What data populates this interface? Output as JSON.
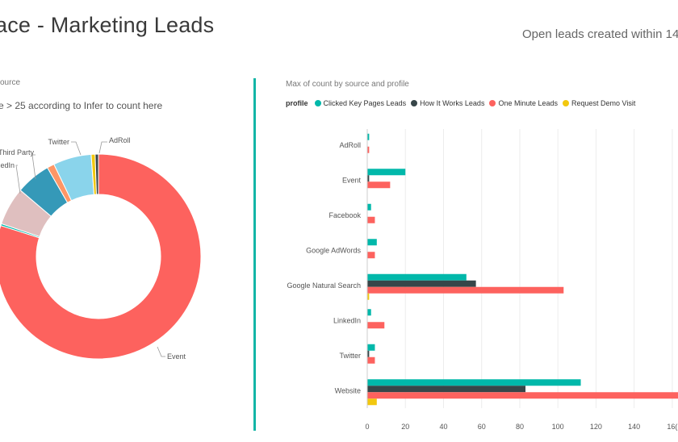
{
  "header": {
    "title": "ace - Marketing Leads",
    "subtitle": "Open leads created within 14 -"
  },
  "donut": {
    "title": "ource",
    "subtitle": "e > 25 according to Infer to count here"
  },
  "bar": {
    "title": "Max of count by source and profile",
    "legend_title": "profile"
  },
  "chart_data": [
    {
      "type": "pie",
      "categories": [
        "Event",
        "AdRoll",
        "Twitter",
        "Google Natural Search",
        "Third Party",
        "LinkedIn",
        "Facebook",
        "Google AdWords"
      ],
      "values": [
        77,
        0.3,
        5.8,
        5.3,
        1.1,
        5.8,
        0.6,
        0.5
      ],
      "labels_visible": [
        "Event",
        "AdRoll",
        "Twitter",
        "Third Party",
        "edIn"
      ],
      "colors": [
        "#fd625e",
        "#01b8aa",
        "#dfbfbf",
        "#3599b8",
        "#fe9666",
        "#8ad4eb",
        "#f2c80f",
        "#374649"
      ]
    },
    {
      "type": "bar",
      "orientation": "horizontal",
      "categories": [
        "AdRoll",
        "Event",
        "Facebook",
        "Google AdWords",
        "Google Natural Search",
        "LinkedIn",
        "Twitter",
        "Website"
      ],
      "series": [
        {
          "name": "Clicked Key Pages Leads",
          "color": "#01b8aa",
          "values": [
            1,
            20,
            2,
            5,
            52,
            2,
            4,
            112
          ]
        },
        {
          "name": "How It Works Leads",
          "color": "#374649",
          "values": [
            0,
            1,
            0,
            0,
            57,
            0,
            1,
            83
          ]
        },
        {
          "name": "One Minute Leads",
          "color": "#fd625e",
          "values": [
            1,
            12,
            4,
            4,
            103,
            9,
            4,
            165
          ]
        },
        {
          "name": "Request Demo Visit",
          "color": "#f2c80f",
          "values": [
            0,
            0,
            0,
            0,
            1,
            0,
            0,
            5
          ]
        }
      ],
      "xticks": [
        "0",
        "20",
        "40",
        "60",
        "80",
        "100",
        "120",
        "140",
        "16("
      ],
      "xlim": [
        0,
        163
      ]
    }
  ]
}
